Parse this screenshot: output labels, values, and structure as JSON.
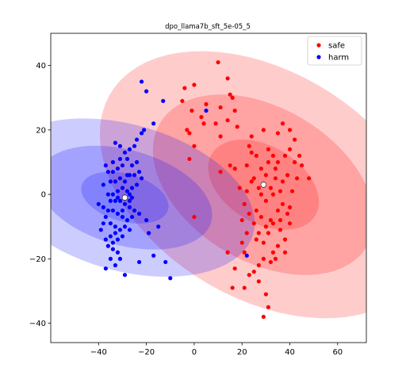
{
  "chart_data": {
    "type": "scatter",
    "title": "dpo_llama7b_sft_5e-05_5",
    "xlabel": "",
    "ylabel": "",
    "xlim": [
      -60,
      72
    ],
    "ylim": [
      -46,
      50
    ],
    "xticks": [
      -40,
      -20,
      0,
      20,
      40,
      60
    ],
    "yticks": [
      -40,
      -20,
      0,
      20,
      40
    ],
    "grid": false,
    "legend_position": "top-right",
    "series": [
      {
        "name": "safe",
        "color": "#ff0000",
        "ellipse_color": "#ff0000",
        "center": [
          29,
          3
        ],
        "ellipses": [
          {
            "width": 25,
            "height": 48,
            "angle": 72
          },
          {
            "width": 50,
            "height": 96,
            "angle": 72
          },
          {
            "width": 74,
            "height": 142,
            "angle": 72
          }
        ],
        "points": [
          [
            10,
            41
          ],
          [
            14,
            36
          ],
          [
            15,
            31
          ],
          [
            16,
            30
          ],
          [
            11,
            27
          ],
          [
            0,
            34
          ],
          [
            -4,
            33
          ],
          [
            -5,
            29
          ],
          [
            5,
            28
          ],
          [
            -1,
            26
          ],
          [
            4,
            22
          ],
          [
            3,
            24
          ],
          [
            -3,
            20
          ],
          [
            14,
            23
          ],
          [
            0,
            15
          ],
          [
            -2,
            19
          ],
          [
            9,
            22
          ],
          [
            11,
            18
          ],
          [
            18,
            21
          ],
          [
            24,
            18
          ],
          [
            29,
            20
          ],
          [
            37,
            22
          ],
          [
            35,
            19
          ],
          [
            40,
            20
          ],
          [
            42,
            17
          ],
          [
            38,
            12
          ],
          [
            40,
            14
          ],
          [
            42,
            10
          ],
          [
            39,
            6
          ],
          [
            45,
            9
          ],
          [
            43,
            5
          ],
          [
            48,
            5
          ],
          [
            37,
            4
          ],
          [
            33,
            0
          ],
          [
            32,
            2
          ],
          [
            30,
            6
          ],
          [
            28,
            8
          ],
          [
            26,
            12
          ],
          [
            25,
            5
          ],
          [
            22,
            1
          ],
          [
            21,
            -3
          ],
          [
            23,
            -6
          ],
          [
            25,
            -9
          ],
          [
            27,
            -12
          ],
          [
            29,
            -15
          ],
          [
            31,
            -12
          ],
          [
            33,
            -9
          ],
          [
            35,
            -5
          ],
          [
            36,
            -11
          ],
          [
            38,
            -14
          ],
          [
            35,
            -16
          ],
          [
            33,
            -18
          ],
          [
            32,
            -21
          ],
          [
            29,
            -20
          ],
          [
            27,
            -22
          ],
          [
            25,
            -24
          ],
          [
            23,
            -25
          ],
          [
            21,
            -29
          ],
          [
            16,
            -29
          ],
          [
            17,
            -23
          ],
          [
            14,
            -18
          ],
          [
            21,
            -18
          ],
          [
            27,
            -27
          ],
          [
            30,
            -31
          ],
          [
            31,
            -35
          ],
          [
            29,
            -38
          ],
          [
            20,
            -15
          ],
          [
            22,
            -12
          ],
          [
            20,
            -8
          ],
          [
            19,
            2
          ],
          [
            17,
            8
          ],
          [
            15,
            9
          ],
          [
            22,
            9
          ],
          [
            24,
            13
          ],
          [
            31,
            14
          ],
          [
            33,
            12
          ],
          [
            34,
            8
          ],
          [
            36,
            1
          ],
          [
            37,
            -3
          ],
          [
            39,
            -6
          ],
          [
            40,
            -9
          ],
          [
            38,
            -18
          ],
          [
            34,
            -20
          ],
          [
            26,
            -14
          ],
          [
            24,
            4
          ],
          [
            27,
            2
          ],
          [
            26,
            -5
          ],
          [
            28,
            -7
          ],
          [
            30,
            -2
          ],
          [
            34,
            5
          ],
          [
            35,
            10
          ],
          [
            41,
            1
          ],
          [
            36,
            -8
          ],
          [
            31,
            10
          ],
          [
            23,
            15
          ],
          [
            32,
            -8
          ],
          [
            30,
            -10
          ],
          [
            28,
            0
          ],
          [
            11,
            7
          ],
          [
            0,
            -7
          ],
          [
            -2,
            11
          ],
          [
            17,
            26
          ],
          [
            40,
            -4
          ],
          [
            44,
            12
          ]
        ]
      },
      {
        "name": "harm",
        "color": "#0000ff",
        "ellipse_color": "#0000ff",
        "center": [
          -29,
          -1
        ],
        "ellipses": [
          {
            "width": 15,
            "height": 37,
            "angle": 80
          },
          {
            "width": 30,
            "height": 74,
            "angle": 80
          },
          {
            "width": 46,
            "height": 110,
            "angle": 80
          }
        ],
        "points": [
          [
            -22,
            35
          ],
          [
            -20,
            32
          ],
          [
            -13,
            29
          ],
          [
            -17,
            22
          ],
          [
            -21,
            20
          ],
          [
            -22,
            19
          ],
          [
            -24,
            17
          ],
          [
            -25,
            15
          ],
          [
            -27,
            14
          ],
          [
            -29,
            13
          ],
          [
            -31,
            15
          ],
          [
            -33,
            16
          ],
          [
            -31,
            11
          ],
          [
            -28,
            11
          ],
          [
            -26,
            9
          ],
          [
            -24,
            10
          ],
          [
            -30,
            9
          ],
          [
            -32,
            8
          ],
          [
            -34,
            7
          ],
          [
            -36,
            7
          ],
          [
            -35,
            4
          ],
          [
            -33,
            4
          ],
          [
            -31,
            5
          ],
          [
            -29,
            4
          ],
          [
            -27,
            6
          ],
          [
            -25,
            6
          ],
          [
            -23,
            7
          ],
          [
            -22,
            5
          ],
          [
            -24,
            3
          ],
          [
            -26,
            2
          ],
          [
            -28,
            1
          ],
          [
            -30,
            2
          ],
          [
            -32,
            1
          ],
          [
            -34,
            0
          ],
          [
            -36,
            0
          ],
          [
            -35,
            -2
          ],
          [
            -33,
            -2
          ],
          [
            -31,
            -2
          ],
          [
            -29,
            -3
          ],
          [
            -27,
            -4
          ],
          [
            -25,
            -5
          ],
          [
            -23,
            -6
          ],
          [
            -27,
            -2
          ],
          [
            -26,
            -7
          ],
          [
            -28,
            -8
          ],
          [
            -30,
            -7
          ],
          [
            -32,
            -6
          ],
          [
            -34,
            -5
          ],
          [
            -36,
            -5
          ],
          [
            -38,
            -4
          ],
          [
            -37,
            -7
          ],
          [
            -35,
            -9
          ],
          [
            -33,
            -10
          ],
          [
            -31,
            -11
          ],
          [
            -29,
            -10
          ],
          [
            -27,
            -11
          ],
          [
            -30,
            -13
          ],
          [
            -32,
            -14
          ],
          [
            -34,
            -15
          ],
          [
            -33,
            -12
          ],
          [
            -35,
            -13
          ],
          [
            -37,
            -14
          ],
          [
            -38,
            -9
          ],
          [
            -39,
            -11
          ],
          [
            -36,
            -16
          ],
          [
            -34,
            -17
          ],
          [
            -32,
            -18
          ],
          [
            -31,
            -20
          ],
          [
            -33,
            -22
          ],
          [
            -35,
            -20
          ],
          [
            -37,
            -23
          ],
          [
            -29,
            -25
          ],
          [
            -23,
            -21
          ],
          [
            -17,
            -19
          ],
          [
            -12,
            -21
          ],
          [
            -10,
            -26
          ],
          [
            -20,
            -8
          ],
          [
            -19,
            -12
          ],
          [
            -15,
            -10
          ],
          [
            -40,
            -3
          ],
          [
            -38,
            3
          ],
          [
            -37,
            9
          ],
          [
            -30,
            -5
          ],
          [
            -28,
            6
          ],
          [
            -26,
            -1
          ],
          [
            5,
            26
          ],
          [
            22,
            -19
          ],
          [
            -27,
            0
          ],
          [
            -34,
            10
          ],
          [
            -32,
            -1
          ]
        ]
      }
    ]
  }
}
